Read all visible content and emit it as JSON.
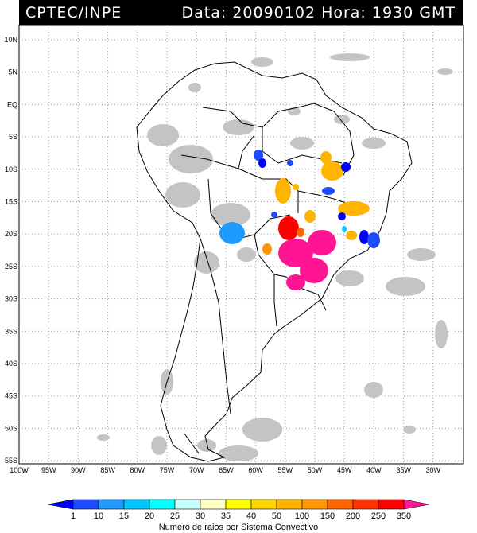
{
  "header": {
    "left_text": "CPTEC/INPE",
    "right_text": "Data: 20090102 Hora: 1930 GMT"
  },
  "map": {
    "lon_range": [
      -100,
      -25
    ],
    "lat_range": [
      -56,
      13
    ],
    "lat_ticks": [
      "10N",
      "5N",
      "EQ",
      "5S",
      "10S",
      "15S",
      "20S",
      "25S",
      "30S",
      "35S",
      "40S",
      "45S",
      "50S",
      "55S"
    ],
    "lon_ticks": [
      "100W",
      "95W",
      "90W",
      "85W",
      "80W",
      "75W",
      "70W",
      "65W",
      "60W",
      "55W",
      "50W",
      "45W",
      "40W",
      "35W",
      "30W"
    ],
    "grid": true
  },
  "colorbar": {
    "labels": [
      "1",
      "10",
      "15",
      "20",
      "25",
      "30",
      "35",
      "40",
      "50",
      "100",
      "150",
      "200",
      "250",
      "350"
    ],
    "colors": [
      "#0000ff",
      "#1e4bff",
      "#1e9bff",
      "#00c8ff",
      "#00ffff",
      "#c8ffff",
      "#ffffc8",
      "#ffff00",
      "#ffd700",
      "#ffb400",
      "#ff9600",
      "#ff6400",
      "#ff3200",
      "#ff0000",
      "#ff1493"
    ],
    "title": "Numero de raios por Sistema Convectivo"
  },
  "colors": {
    "background": "#ffffff",
    "header_bg": "#000000",
    "header_text": "#ffffff",
    "cloud_gray": "#c0c0c0"
  }
}
